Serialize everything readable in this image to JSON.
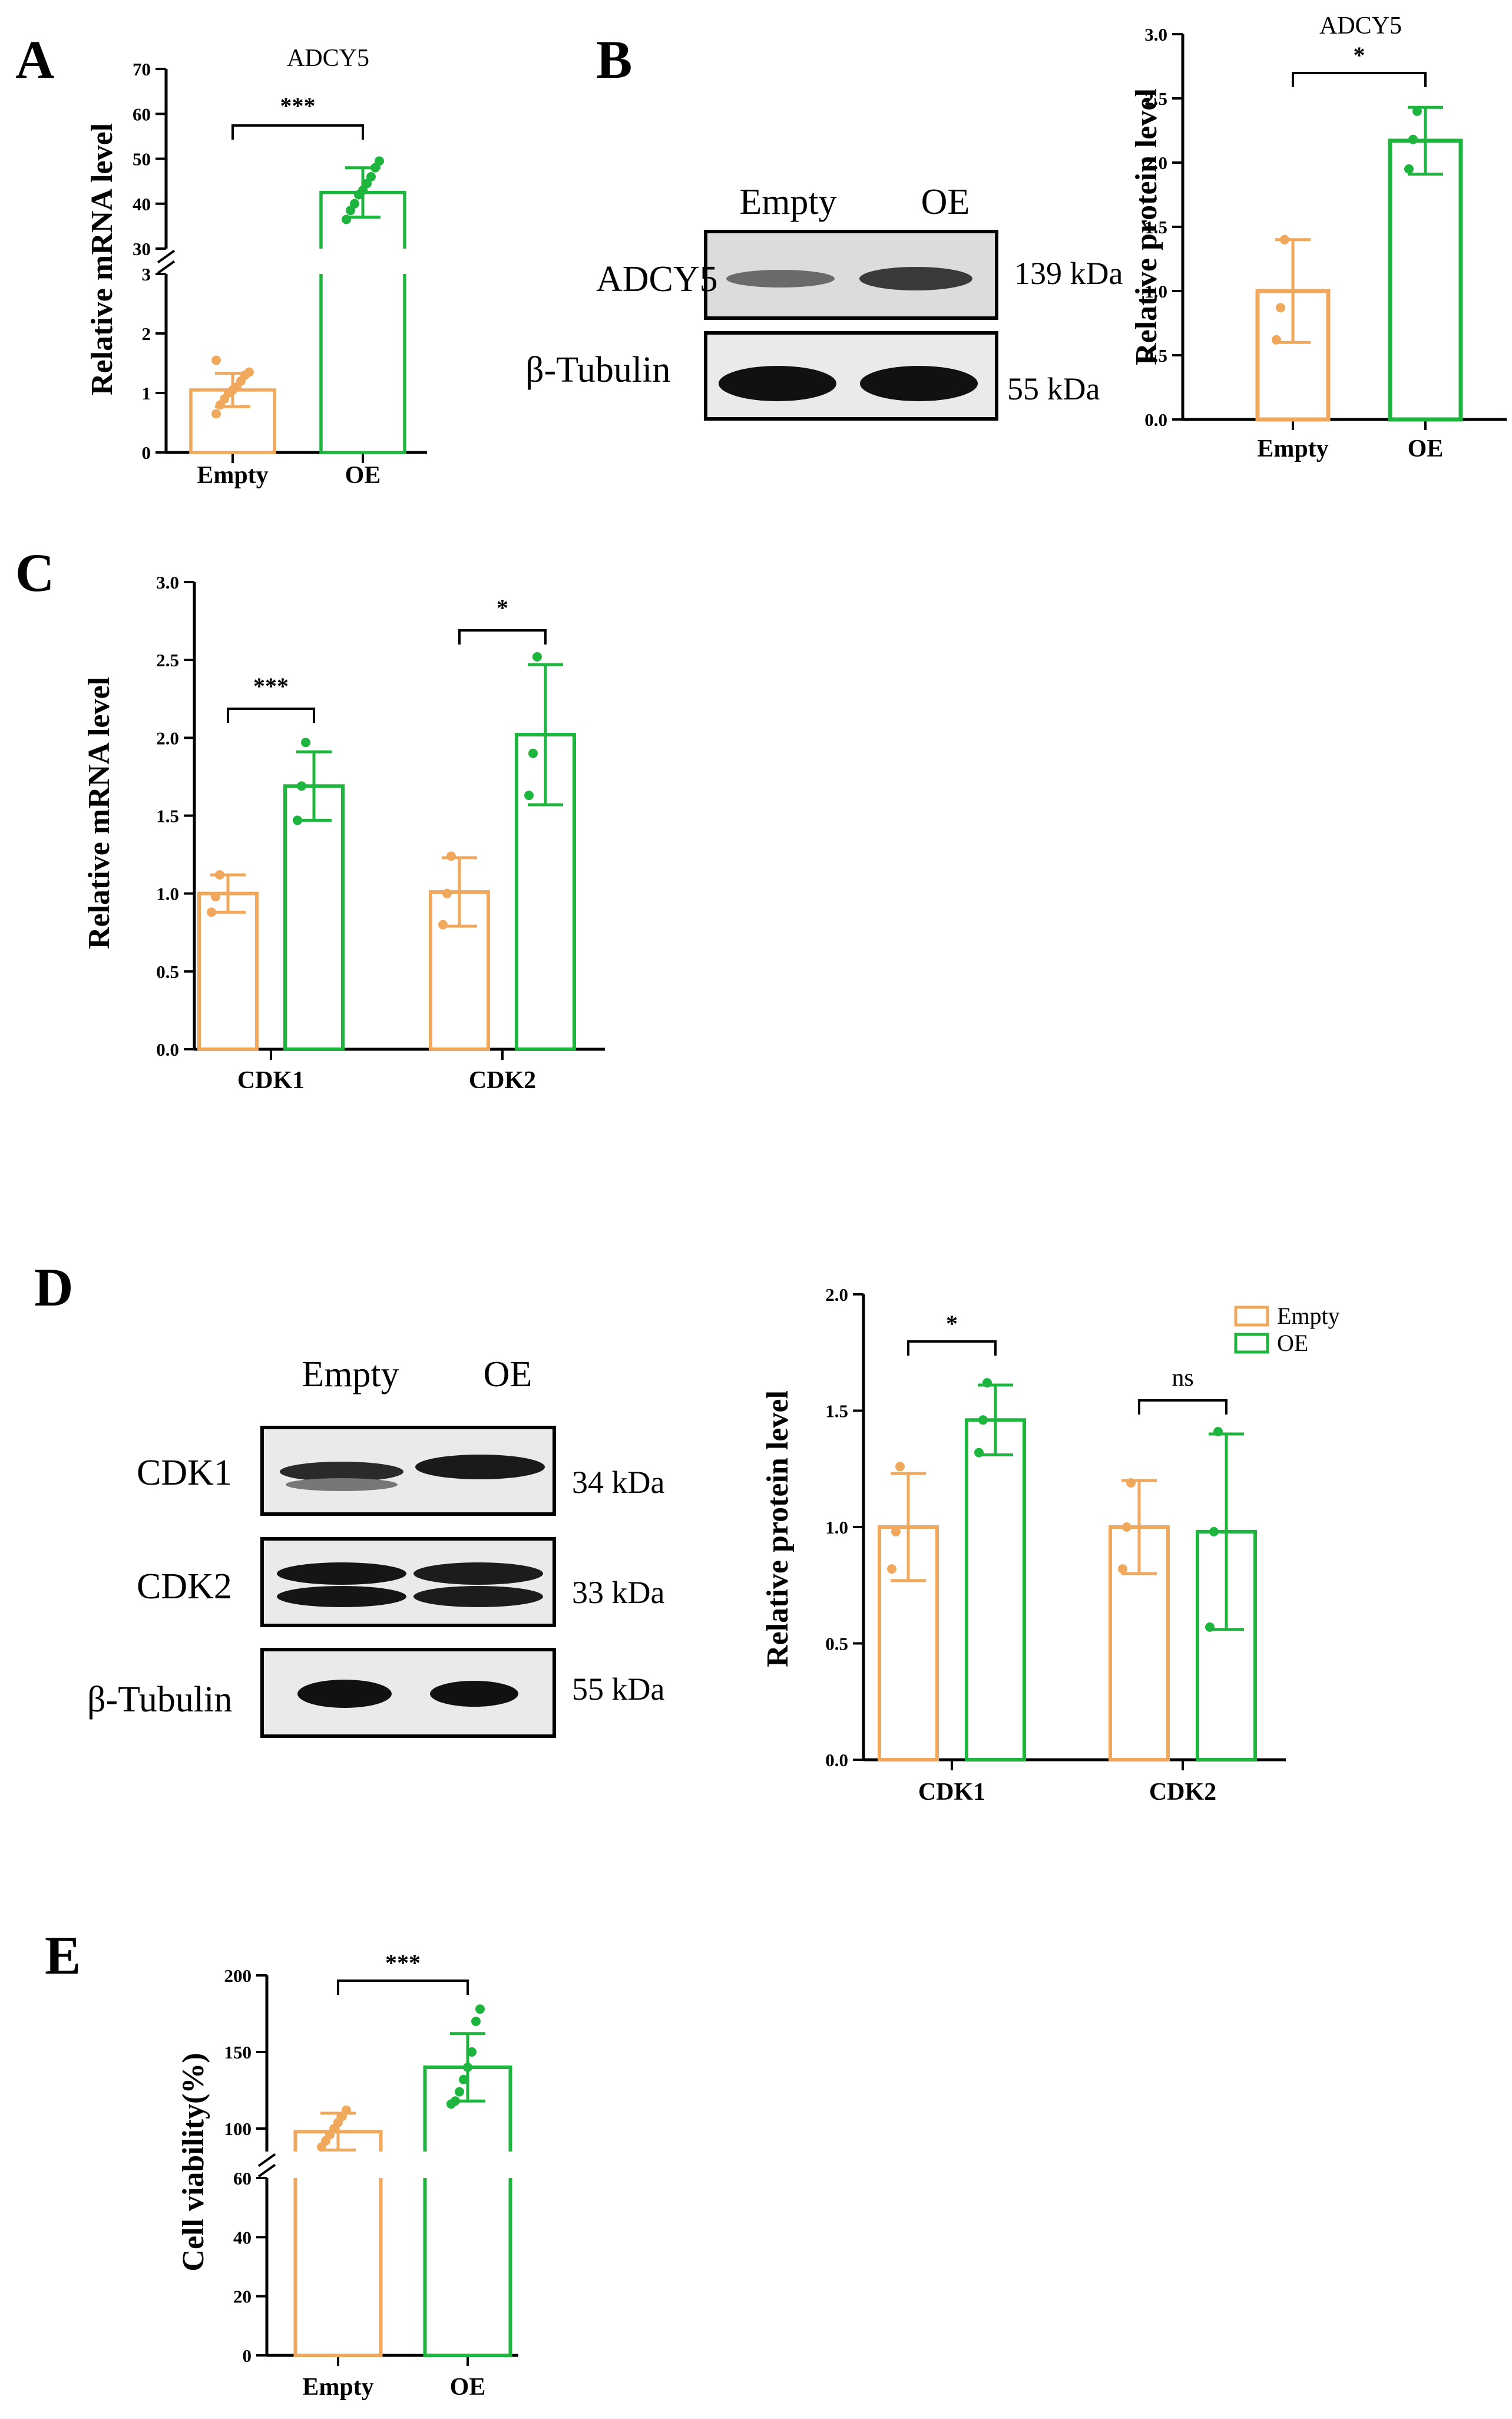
{
  "colors": {
    "empty": "#F0A95C",
    "oe": "#1DB53D",
    "axis": "#000000",
    "blot_bg": "#eaeaea",
    "band": "#1a1a1a"
  },
  "legend": {
    "items": [
      {
        "label": "Empty",
        "color": "#F0A95C"
      },
      {
        "label": "OE",
        "color": "#1DB53D"
      }
    ]
  },
  "blots": {
    "B": {
      "lanes": [
        "Empty",
        "OE"
      ],
      "rows": [
        {
          "protein": "ADCY5",
          "kda": "139 kDa"
        },
        {
          "protein": "β-Tubulin",
          "kda": "55 kDa"
        }
      ]
    },
    "D": {
      "lanes": [
        "Empty",
        "OE"
      ],
      "rows": [
        {
          "protein": "CDK1",
          "kda": "34 kDa"
        },
        {
          "protein": "CDK2",
          "kda": "33 kDa"
        },
        {
          "protein": "β-Tubulin",
          "kda": "55 kDa"
        }
      ]
    }
  },
  "chart_data": [
    {
      "panel": "A",
      "type": "bar",
      "title": "ADCY5",
      "ylabel": "Relative mRNA level",
      "xlabel": "",
      "categories": [
        "Empty",
        "OE"
      ],
      "axis_break": true,
      "segments": [
        {
          "range": [
            0,
            3
          ],
          "ticks": [
            0,
            1,
            2,
            3
          ]
        },
        {
          "range": [
            30,
            70
          ],
          "ticks": [
            30,
            40,
            50,
            60,
            70
          ]
        }
      ],
      "bars": [
        {
          "category": "Empty",
          "value": 1.05,
          "sd": 0.28,
          "points": [
            0.65,
            0.8,
            0.9,
            1.0,
            1.05,
            1.1,
            1.2,
            1.3,
            1.35,
            1.55
          ]
        },
        {
          "category": "OE",
          "value": 42.5,
          "sd": 5.5,
          "points": [
            36.5,
            38.5,
            40.0,
            42.0,
            43.0,
            44.5,
            46.0,
            48.0,
            49.5
          ]
        }
      ],
      "brackets": [
        {
          "from": 0,
          "to": 1,
          "label": "***"
        }
      ]
    },
    {
      "panel": "B",
      "type": "bar",
      "title": "ADCY5",
      "ylabel": "Relative protein level",
      "xlabel": "",
      "categories": [
        "Empty",
        "OE"
      ],
      "ylim": [
        0,
        3.0
      ],
      "ticks": [
        0.0,
        0.5,
        1.0,
        1.5,
        2.0,
        2.5,
        3.0
      ],
      "bars": [
        {
          "category": "Empty",
          "value": 1.0,
          "sd": 0.4,
          "points": [
            0.62,
            0.87,
            1.4
          ]
        },
        {
          "category": "OE",
          "value": 2.17,
          "sd": 0.26,
          "points": [
            1.95,
            2.18,
            2.4
          ]
        }
      ],
      "brackets": [
        {
          "from": 0,
          "to": 1,
          "label": "*"
        }
      ]
    },
    {
      "panel": "C",
      "type": "bar",
      "title": "",
      "ylabel": "Relative mRNA level",
      "xlabel": "",
      "categories": [
        "CDK1",
        "CDK2"
      ],
      "ylim": [
        0,
        3.0
      ],
      "ticks": [
        0.0,
        0.5,
        1.0,
        1.5,
        2.0,
        2.5,
        3.0
      ],
      "series": [
        {
          "name": "Empty",
          "values": [
            1.0,
            1.01
          ],
          "sd": [
            0.12,
            0.22
          ],
          "points": [
            [
              0.88,
              0.98,
              1.12
            ],
            [
              0.8,
              1.0,
              1.24
            ]
          ]
        },
        {
          "name": "OE",
          "values": [
            1.69,
            2.02
          ],
          "sd": [
            0.22,
            0.45
          ],
          "points": [
            [
              1.47,
              1.69,
              1.97
            ],
            [
              1.63,
              1.9,
              2.52
            ]
          ]
        }
      ],
      "brackets": [
        {
          "category": 0,
          "label": "***"
        },
        {
          "category": 1,
          "label": "*"
        }
      ]
    },
    {
      "panel": "D",
      "type": "bar",
      "title": "",
      "ylabel": "Relative protein level",
      "xlabel": "",
      "categories": [
        "CDK1",
        "CDK2"
      ],
      "ylim": [
        0,
        2.0
      ],
      "ticks": [
        0.0,
        0.5,
        1.0,
        1.5,
        2.0
      ],
      "series": [
        {
          "name": "Empty",
          "values": [
            1.0,
            1.0
          ],
          "sd": [
            0.23,
            0.2
          ],
          "points": [
            [
              0.82,
              0.98,
              1.26
            ],
            [
              0.82,
              1.0,
              1.19
            ]
          ]
        },
        {
          "name": "OE",
          "values": [
            1.46,
            0.98
          ],
          "sd": [
            0.15,
            0.42
          ],
          "points": [
            [
              1.32,
              1.46,
              1.62
            ],
            [
              0.57,
              0.98,
              1.41
            ]
          ]
        }
      ],
      "brackets": [
        {
          "category": 0,
          "label": "*"
        },
        {
          "category": 1,
          "label": "ns"
        }
      ],
      "legend": "top-right"
    },
    {
      "panel": "E",
      "type": "bar",
      "title": "",
      "ylabel": "Cell viability(%)",
      "xlabel": "",
      "categories": [
        "Empty",
        "OE"
      ],
      "axis_break": true,
      "segments": [
        {
          "range": [
            0,
            60
          ],
          "ticks": [
            0,
            20,
            40,
            60
          ]
        },
        {
          "range": [
            85,
            200
          ],
          "ticks": [
            100,
            150,
            200
          ]
        }
      ],
      "bars": [
        {
          "category": "Empty",
          "value": 98,
          "sd": 12,
          "points": [
            88,
            92,
            96,
            100,
            104,
            108,
            112
          ]
        },
        {
          "category": "OE",
          "value": 140,
          "sd": 22,
          "points": [
            116,
            118,
            124,
            132,
            140,
            150,
            170,
            178
          ]
        }
      ],
      "brackets": [
        {
          "from": 0,
          "to": 1,
          "label": "***"
        }
      ]
    }
  ]
}
